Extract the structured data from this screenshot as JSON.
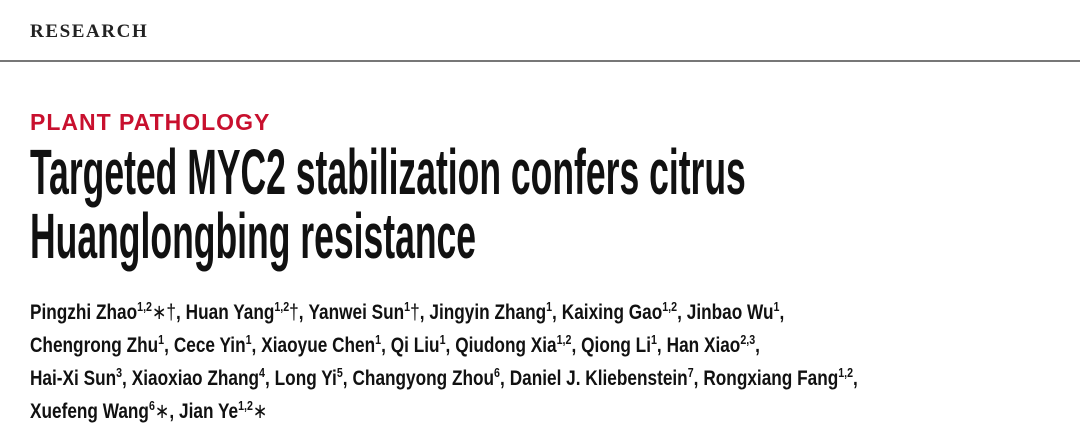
{
  "header": {
    "journal_section": "RESEARCH"
  },
  "article": {
    "category": "PLANT PATHOLOGY",
    "title_lines": [
      "Targeted MYC2 stabilization confers citrus",
      "Huanglongbing resistance"
    ],
    "author_lines": [
      [
        {
          "name": "Pingzhi Zhao",
          "affil": "1,2",
          "marks": "∗†",
          "sep": ","
        },
        {
          "name": "Huan Yang",
          "affil": "1,2",
          "marks": "†",
          "sep": ","
        },
        {
          "name": "Yanwei Sun",
          "affil": "1",
          "marks": "†",
          "sep": ","
        },
        {
          "name": "Jingyin Zhang",
          "affil": "1",
          "sep": ","
        },
        {
          "name": "Kaixing Gao",
          "affil": "1,2",
          "sep": ","
        },
        {
          "name": "Jinbao Wu",
          "affil": "1",
          "sep": ","
        }
      ],
      [
        {
          "name": "Chengrong Zhu",
          "affil": "1",
          "sep": ","
        },
        {
          "name": "Cece Yin",
          "affil": "1",
          "sep": ","
        },
        {
          "name": "Xiaoyue Chen",
          "affil": "1",
          "sep": ","
        },
        {
          "name": "Qi Liu",
          "affil": "1",
          "sep": ","
        },
        {
          "name": "Qiudong Xia",
          "affil": "1,2",
          "sep": ","
        },
        {
          "name": "Qiong Li",
          "affil": "1",
          "sep": ","
        },
        {
          "name": "Han Xiao",
          "affil": "2,3",
          "sep": ","
        }
      ],
      [
        {
          "name": "Hai-Xi Sun",
          "affil": "3",
          "sep": ","
        },
        {
          "name": "Xiaoxiao Zhang",
          "affil": "4",
          "sep": ","
        },
        {
          "name": "Long Yi",
          "affil": "5",
          "sep": ","
        },
        {
          "name": "Changyong Zhou",
          "affil": "6",
          "sep": ","
        },
        {
          "name": "Daniel J. Kliebenstein",
          "affil": "7",
          "sep": ","
        },
        {
          "name": "Rongxiang Fang",
          "affil": "1,2",
          "sep": ","
        }
      ],
      [
        {
          "name": "Xuefeng Wang",
          "affil": "6",
          "marks": "∗",
          "sep": ","
        },
        {
          "name": "Jian Ye",
          "affil": "1,2",
          "marks": "∗"
        }
      ]
    ]
  }
}
